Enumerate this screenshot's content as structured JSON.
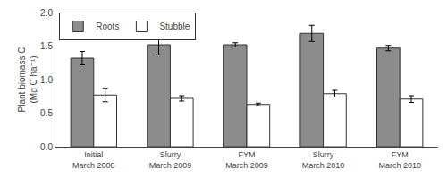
{
  "chart_data": {
    "type": "bar",
    "categories": [
      "Initial\nMarch 2008",
      "Slurry\nMarch 2009",
      "FYM\nMarch 2009",
      "Slurry\nMarch 2010",
      "FYM\nMarch 2010"
    ],
    "series": [
      {
        "name": "Roots",
        "color": "#8C8C8C",
        "values": [
          1.32,
          1.52,
          1.52,
          1.69,
          1.47
        ],
        "errors": [
          0.1,
          0.15,
          0.03,
          0.12,
          0.04
        ]
      },
      {
        "name": "Stubble",
        "color": "#ffffff",
        "values": [
          0.77,
          0.72,
          0.63,
          0.79,
          0.71
        ],
        "errors": [
          0.1,
          0.04,
          0.02,
          0.05,
          0.05
        ]
      }
    ],
    "ylabel": "Plant biomass C\n(Mg C ha⁻¹)",
    "ylim": [
      0.0,
      2.0
    ],
    "yticks": [
      {
        "value": 0.0,
        "label": "0.0"
      },
      0.5,
      {
        "value": 1.0,
        "label": "1.0"
      },
      1.5,
      {
        "value": 2.0,
        "label": "2.0"
      }
    ],
    "legend": "upper left",
    "grid": false
  }
}
